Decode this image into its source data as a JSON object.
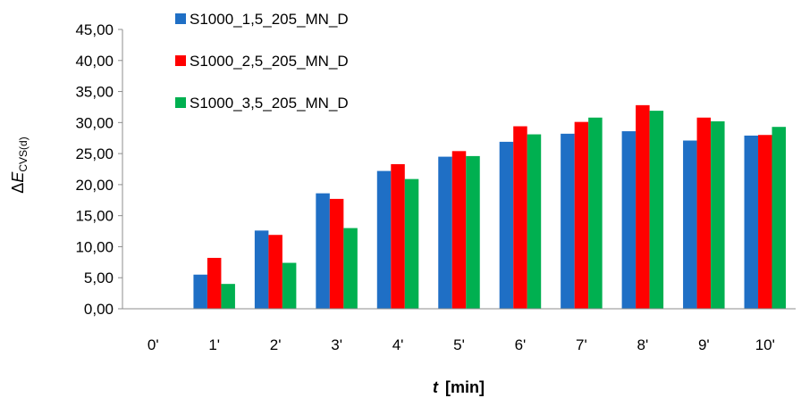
{
  "chart_data": {
    "type": "bar",
    "categories": [
      "0'",
      "1'",
      "2'",
      "3'",
      "4'",
      "5'",
      "6'",
      "7'",
      "8'",
      "9'",
      "10'"
    ],
    "series": [
      {
        "name": "S1000_1,5_205_MN_D",
        "color": "#1f6fc5",
        "values": [
          0,
          5.5,
          12.6,
          18.6,
          22.2,
          24.5,
          26.9,
          28.2,
          28.6,
          27.1,
          27.9
        ]
      },
      {
        "name": "S1000_2,5_205_MN_D",
        "color": "#ff0000",
        "values": [
          0,
          8.2,
          11.9,
          17.7,
          23.3,
          25.4,
          29.4,
          30.1,
          32.8,
          30.8,
          28.0
        ]
      },
      {
        "name": "S1000_3,5_205_MN_D",
        "color": "#00b050",
        "values": [
          0,
          4.0,
          7.4,
          13.0,
          20.9,
          24.6,
          28.1,
          30.8,
          31.9,
          30.2,
          29.3
        ]
      }
    ],
    "y_ticks": [
      "0,00",
      "5,00",
      "10,00",
      "15,00",
      "20,00",
      "25,00",
      "30,00",
      "35,00",
      "40,00",
      "45,00"
    ],
    "ylim": [
      0,
      45
    ],
    "ylabel": {
      "delta": "Δ",
      "symbol": "E",
      "subscript": "CVS(d)"
    },
    "xlabel": {
      "symbol": "t",
      "unit": "[min]"
    },
    "legend_position": "top-left",
    "grid": false
  }
}
